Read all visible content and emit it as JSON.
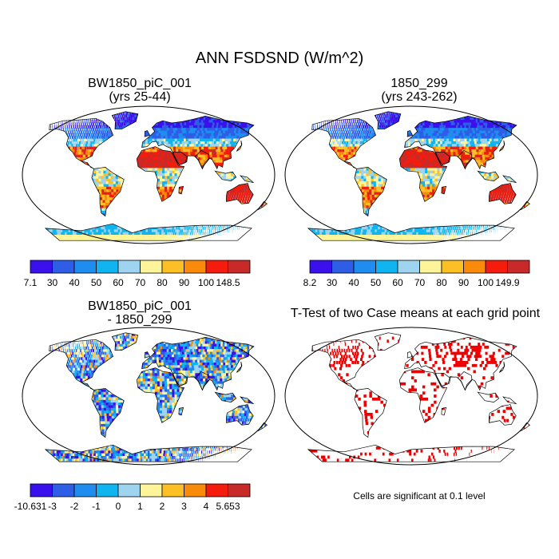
{
  "title": "ANN FSDSND (W/m^2)",
  "panels": [
    {
      "id": "case1",
      "title": "BW1850_piC_001",
      "subtitle": "(yrs 25-44)",
      "colorbar": {
        "colors": [
          "#3a10ec",
          "#2e5ee6",
          "#1f8cf0",
          "#10b4ef",
          "#9fd4f0",
          "#fef49a",
          "#fcc026",
          "#fa8a0a",
          "#f41c0d",
          "#c82a2a"
        ],
        "labels": [
          "7.1",
          "30",
          "40",
          "50",
          "60",
          "70",
          "80",
          "90",
          "100",
          "148.5"
        ]
      }
    },
    {
      "id": "case2",
      "title": "1850_299",
      "subtitle": "(yrs 243-262)",
      "colorbar": {
        "colors": [
          "#3a10ec",
          "#2e5ee6",
          "#1f8cf0",
          "#10b4ef",
          "#9fd4f0",
          "#fef49a",
          "#fcc026",
          "#fa8a0a",
          "#f41c0d",
          "#c82a2a"
        ],
        "labels": [
          "8.2",
          "30",
          "40",
          "50",
          "60",
          "70",
          "80",
          "90",
          "100",
          "149.9"
        ]
      }
    },
    {
      "id": "diff",
      "title": "BW1850_piC_001",
      "subtitle": "- 1850_299",
      "colorbar": {
        "colors": [
          "#3a10ec",
          "#2e5ee6",
          "#1f8cf0",
          "#10b4ef",
          "#9fd4f0",
          "#fef49a",
          "#fcc026",
          "#fa8a0a",
          "#f41c0d",
          "#c82a2a"
        ],
        "labels": [
          "-10.631",
          "-3",
          "-2",
          "-1",
          "0",
          "1",
          "2",
          "3",
          "4",
          "5.653"
        ]
      }
    },
    {
      "id": "ttest",
      "title": "T-Test of two Case means at each grid point",
      "note": "Cells are significant at 0.1 level",
      "significance_color": "#ee0000"
    }
  ]
}
